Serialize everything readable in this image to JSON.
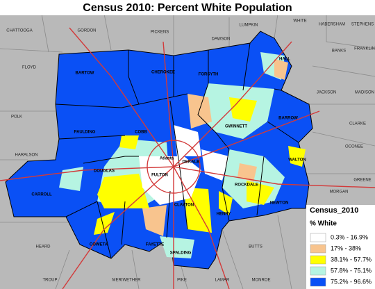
{
  "title": "Census 2010: Percent White Population",
  "places": [
    "CHATTOOGA",
    "GORDON",
    "PICKENS",
    "DAWSON",
    "LUMPKIN",
    "WHITE",
    "HABERSHAM",
    "STEPHENS",
    "FLOYD",
    "BARTOW",
    "CHEROKEE",
    "FORSYTH",
    "HALL",
    "BANKS",
    "FRANKLIN",
    "POLK",
    "JACKSON",
    "MADISON",
    "PAULDING",
    "COBB",
    "GWINNETT",
    "BARROW",
    "CLARKE",
    "HARALSON",
    "OCONEE",
    "DOUGLAS",
    "Atlanta",
    "FULTON",
    "DEKALB",
    "WALTON",
    "CARROLL",
    "ROCKDALE",
    "MORGAN",
    "GREENE",
    "CLAYTON",
    "NEWTON",
    "HENRY",
    "COWETA",
    "FAYETTE",
    "HEARD",
    "BUTTS",
    "SPALDING",
    "TROUP",
    "MERIWETHER",
    "PIKE",
    "LAMAR",
    "MONROE"
  ],
  "legend": {
    "title": "Census_2010",
    "subtitle": "% White",
    "items": [
      {
        "label": "0.3% - 16.9%",
        "color": "#ffffff"
      },
      {
        "label": "17% - 38%",
        "color": "#f8c48e"
      },
      {
        "label": "38.1% - 57.7%",
        "color": "#ffff00"
      },
      {
        "label": "57.8% - 75.1%",
        "color": "#b6f4e2"
      },
      {
        "label": "75.2% - 96.6%",
        "color": "#0a50f5"
      }
    ]
  }
}
